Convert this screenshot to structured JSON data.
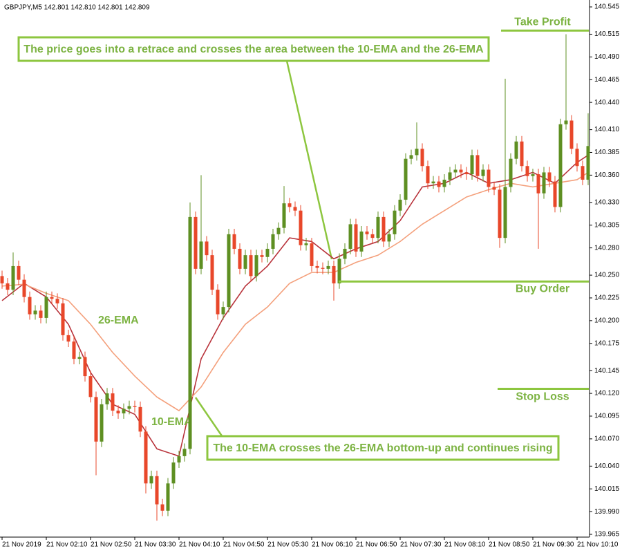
{
  "chart_data": {
    "type": "candlestick",
    "header": "GBPJPY,M5  142.801 142.810 142.801 142.809",
    "up_color": "#5e8f22",
    "down_color": "#e8472a",
    "open": [
      140.249,
      140.241,
      140.234,
      140.26,
      140.245,
      140.226,
      140.207,
      140.211,
      140.203,
      140.226,
      140.224,
      140.219,
      140.184,
      140.177,
      140.158,
      140.16,
      140.139,
      140.116,
      140.067,
      140.108,
      140.12,
      140.101,
      140.098,
      140.103,
      140.106,
      140.105,
      140.078,
      140.021,
      140.029,
      139.998,
      139.991,
      140.021,
      140.044,
      140.051,
      140.059,
      140.314,
      140.257,
      140.287,
      140.272,
      140.234,
      140.207,
      140.215,
      140.295,
      140.279,
      140.257,
      140.272,
      140.249,
      140.272,
      140.27,
      140.279,
      140.295,
      140.302,
      140.329,
      140.325,
      140.321,
      140.283,
      140.285,
      140.26,
      140.258,
      140.257,
      140.26,
      140.241,
      140.268,
      140.279,
      140.306,
      140.276,
      140.298,
      140.295,
      140.291,
      140.314,
      140.287,
      140.295,
      140.321,
      140.333,
      140.378,
      140.382,
      140.389,
      140.37,
      140.351,
      140.353,
      140.347,
      140.355,
      140.363,
      140.366,
      140.363,
      140.361,
      140.382,
      140.359,
      140.366,
      140.347,
      140.344,
      140.291,
      140.347,
      140.378,
      140.397,
      140.37,
      140.359,
      140.361,
      140.34,
      140.363,
      140.353,
      140.325,
      140.416,
      140.42,
      140.389,
      140.37,
      140.355
    ],
    "high": [
      140.255,
      140.247,
      140.275,
      140.266,
      140.251,
      140.232,
      140.217,
      140.217,
      140.232,
      140.232,
      140.23,
      140.225,
      140.19,
      140.183,
      140.166,
      140.166,
      140.145,
      140.122,
      140.114,
      140.126,
      140.126,
      140.107,
      140.109,
      140.112,
      140.112,
      140.111,
      140.084,
      140.035,
      140.035,
      140.004,
      140.027,
      140.05,
      140.057,
      140.065,
      140.33,
      140.32,
      140.36,
      140.293,
      140.278,
      140.24,
      140.221,
      140.301,
      140.301,
      140.285,
      140.278,
      140.278,
      140.278,
      140.278,
      140.285,
      140.301,
      140.308,
      140.348,
      140.335,
      140.331,
      140.327,
      140.291,
      140.291,
      140.266,
      140.264,
      140.266,
      140.266,
      140.274,
      140.285,
      140.312,
      140.312,
      140.304,
      140.304,
      140.301,
      140.32,
      140.32,
      140.301,
      140.327,
      140.339,
      140.384,
      140.388,
      140.418,
      140.395,
      140.376,
      140.359,
      140.359,
      140.361,
      140.369,
      140.372,
      140.372,
      140.369,
      140.388,
      140.388,
      140.372,
      140.372,
      140.353,
      140.35,
      140.466,
      140.384,
      140.403,
      140.403,
      140.376,
      140.367,
      140.367,
      140.369,
      140.369,
      140.359,
      140.422,
      140.515,
      140.426,
      140.395,
      140.376,
      140.428
    ],
    "low": [
      140.235,
      140.228,
      140.228,
      140.239,
      140.22,
      140.201,
      140.201,
      140.197,
      140.197,
      140.218,
      140.213,
      140.178,
      140.171,
      140.152,
      140.152,
      140.133,
      140.11,
      140.03,
      140.061,
      140.102,
      140.095,
      140.092,
      140.092,
      140.097,
      140.099,
      140.072,
      140.01,
      140.015,
      139.98,
      139.985,
      139.985,
      140.015,
      140.038,
      140.045,
      140.053,
      140.251,
      140.251,
      140.266,
      140.228,
      140.201,
      140.201,
      140.209,
      140.273,
      140.251,
      140.251,
      140.243,
      140.243,
      140.264,
      140.264,
      140.273,
      140.289,
      140.296,
      140.319,
      140.315,
      140.277,
      140.277,
      140.254,
      140.252,
      140.251,
      140.251,
      140.222,
      140.235,
      140.262,
      140.273,
      140.27,
      140.27,
      140.289,
      140.285,
      140.285,
      140.281,
      140.281,
      140.289,
      140.315,
      140.327,
      140.372,
      140.376,
      140.364,
      140.345,
      140.345,
      140.341,
      140.341,
      140.349,
      140.357,
      140.357,
      140.355,
      140.355,
      140.353,
      140.353,
      140.341,
      140.338,
      140.28,
      140.285,
      140.341,
      140.372,
      140.364,
      140.353,
      140.353,
      140.279,
      140.334,
      140.347,
      140.319,
      140.319,
      140.41,
      140.383,
      140.364,
      140.349,
      140.349
    ],
    "close": [
      140.241,
      140.234,
      140.26,
      140.245,
      140.226,
      140.207,
      140.211,
      140.203,
      140.226,
      140.224,
      140.219,
      140.184,
      140.177,
      140.158,
      140.16,
      140.139,
      140.116,
      140.067,
      140.108,
      140.12,
      140.101,
      140.098,
      140.103,
      140.106,
      140.105,
      140.078,
      140.021,
      140.029,
      139.998,
      139.991,
      140.021,
      140.044,
      140.051,
      140.059,
      140.314,
      140.257,
      140.287,
      140.272,
      140.234,
      140.207,
      140.215,
      140.295,
      140.279,
      140.257,
      140.272,
      140.249,
      140.272,
      140.27,
      140.279,
      140.295,
      140.302,
      140.329,
      140.325,
      140.321,
      140.283,
      140.285,
      140.26,
      140.258,
      140.257,
      140.26,
      140.241,
      140.268,
      140.279,
      140.306,
      140.276,
      140.298,
      140.295,
      140.291,
      140.314,
      140.287,
      140.295,
      140.321,
      140.333,
      140.378,
      140.382,
      140.389,
      140.37,
      140.351,
      140.353,
      140.347,
      140.355,
      140.363,
      140.366,
      140.363,
      140.361,
      140.382,
      140.359,
      140.366,
      140.347,
      140.344,
      140.291,
      140.347,
      140.378,
      140.397,
      140.37,
      140.359,
      140.361,
      140.34,
      140.363,
      140.353,
      140.325,
      140.416,
      140.42,
      140.389,
      140.37,
      140.355,
      140.392
    ],
    "series": [
      {
        "name": "10-EMA",
        "color": "#b8323a",
        "x": [
          0,
          4,
          8,
          12,
          16,
          20,
          24,
          28,
          32,
          36,
          40,
          44,
          48,
          52,
          56,
          60,
          64,
          68,
          72,
          76,
          80,
          84,
          88,
          92,
          96,
          100,
          104,
          106
        ],
        "values": [
          140.222,
          140.241,
          140.226,
          140.196,
          140.143,
          140.108,
          140.097,
          140.059,
          140.051,
          140.158,
          140.203,
          140.238,
          140.26,
          140.291,
          140.287,
          140.268,
          140.279,
          140.287,
          140.31,
          140.347,
          140.351,
          140.363,
          140.351,
          140.355,
          140.363,
          140.351,
          140.374,
          140.382
        ]
      },
      {
        "name": "26-EMA",
        "color": "#f4a07c",
        "x": [
          0,
          4,
          8,
          12,
          16,
          20,
          24,
          28,
          32,
          36,
          40,
          44,
          48,
          52,
          56,
          60,
          64,
          68,
          72,
          76,
          80,
          84,
          88,
          92,
          96,
          100,
          104,
          106
        ],
        "values": [
          140.238,
          140.24,
          140.23,
          140.222,
          140.196,
          140.165,
          140.139,
          140.116,
          140.101,
          140.127,
          140.165,
          140.196,
          140.215,
          140.241,
          140.253,
          140.253,
          140.264,
          140.272,
          140.287,
          140.306,
          140.321,
          140.336,
          140.344,
          140.351,
          140.347,
          140.351,
          140.355,
          140.363
        ]
      }
    ],
    "levels": [
      {
        "name": "Take Profit",
        "value": 140.519
      },
      {
        "name": "Buy Order",
        "value": 140.243
      },
      {
        "name": "Stop Loss",
        "value": 140.125
      }
    ],
    "level_color": "#8dc63f",
    "annotations": [
      "The price goes into a retrace and crosses the area between the 10-EMA and the 26-EMA",
      "The 10-EMA crosses the 26-EMA bottom-up and continues rising"
    ],
    "xlim": [
      -0.375,
      106.25
    ],
    "xticks": [
      {
        "value": 0,
        "label": "21 Nov 2019"
      },
      {
        "value": 8,
        "label": "21 Nov 02:10"
      },
      {
        "value": 16,
        "label": "21 Nov 02:50"
      },
      {
        "value": 24,
        "label": "21 Nov 03:30"
      },
      {
        "value": 32,
        "label": "21 Nov 04:10"
      },
      {
        "value": 40,
        "label": "21 Nov 04:50"
      },
      {
        "value": 48,
        "label": "21 Nov 05:30"
      },
      {
        "value": 56,
        "label": "21 Nov 06:10"
      },
      {
        "value": 64,
        "label": "21 Nov 06:50"
      },
      {
        "value": 72,
        "label": "21 Nov 07:30"
      },
      {
        "value": 80,
        "label": "21 Nov 08:10"
      },
      {
        "value": 88,
        "label": "21 Nov 08:50"
      },
      {
        "value": 96,
        "label": "21 Nov 09:30"
      },
      {
        "value": 104,
        "label": "21 Nov 10:10"
      }
    ],
    "ylim": [
      139.965,
      140.545
    ],
    "yticks": [
      140.545,
      140.515,
      {
        "value": 140.49,
        "label": "140.490"
      },
      140.465,
      {
        "value": 140.44,
        "label": "140.440"
      },
      {
        "value": 140.41,
        "label": "140.410"
      },
      140.385,
      {
        "value": 140.36,
        "label": "140.360"
      },
      {
        "value": 140.33,
        "label": "140.330"
      },
      140.305,
      {
        "value": 140.28,
        "label": "140.280"
      },
      {
        "value": 140.25,
        "label": "140.250"
      },
      140.225,
      {
        "value": 140.2,
        "label": "140.200"
      },
      140.175,
      140.145,
      {
        "value": 140.12,
        "label": "140.120"
      },
      140.095,
      {
        "value": 140.07,
        "label": "140.070"
      },
      {
        "value": 140.04,
        "label": "140.040"
      },
      140.015,
      {
        "value": 139.99,
        "label": "139.990"
      },
      139.965
    ]
  }
}
